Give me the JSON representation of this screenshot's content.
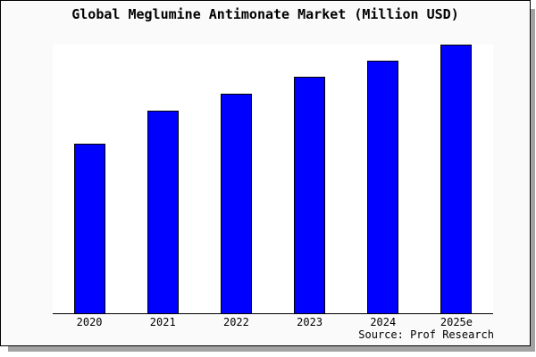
{
  "source": "Source: Prof Research",
  "colors": {
    "bar_fill": "#0000ff",
    "bar_border": "#000000",
    "figure_background": "#fafafa",
    "plot_background": "#ffffff",
    "figure_border": "#000000",
    "shadow": "#a3a3a3",
    "text": "#000000"
  },
  "chart_data": {
    "type": "bar",
    "title": "Global Meglumine Antimonate Market (Million USD)",
    "categories": [
      "2020",
      "2021",
      "2022",
      "2023",
      "2024",
      "2025e"
    ],
    "values": [
      63.1,
      75.2,
      81.5,
      88.0,
      94.0,
      100.0
    ],
    "xlabel": "",
    "ylabel": "",
    "ylim": [
      0,
      100.3
    ],
    "grid": false,
    "legend": false,
    "y_axis_visible": false,
    "tick_marks": false,
    "bar_color": "#0000ff",
    "bar_border_color": "#000000"
  }
}
